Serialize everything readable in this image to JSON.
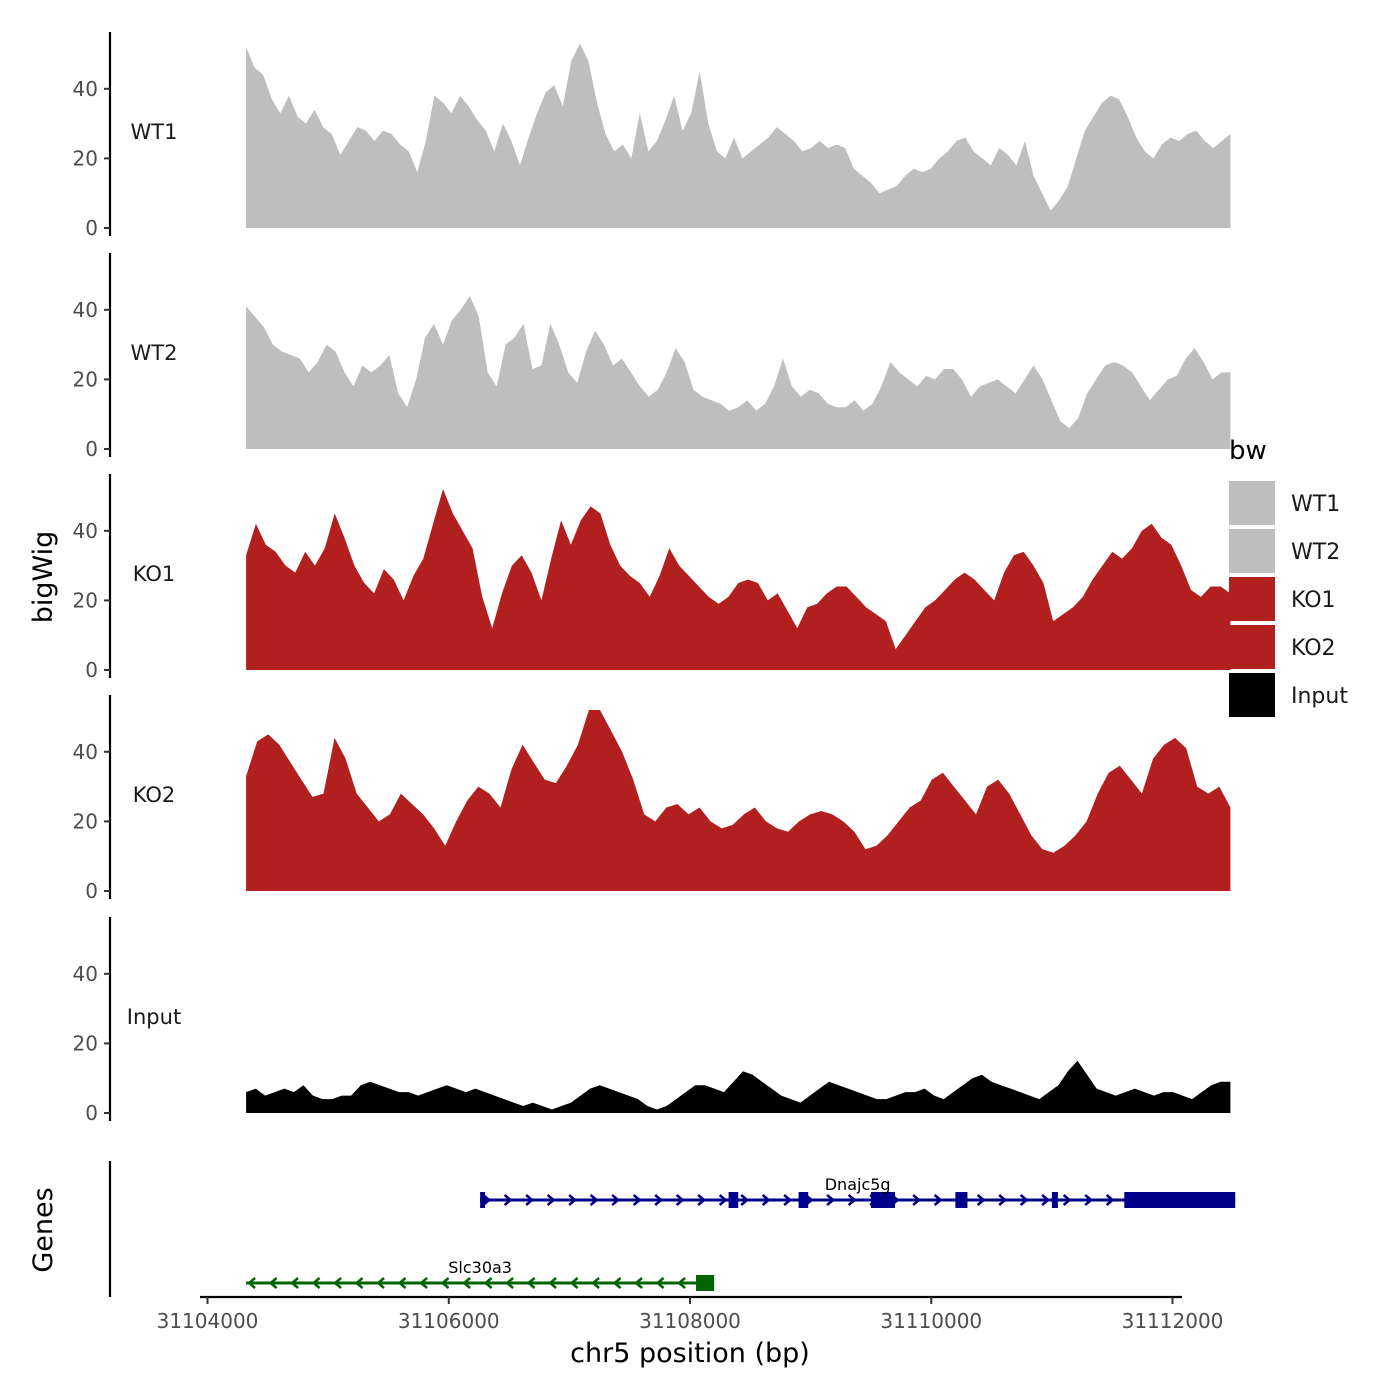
{
  "chart_data": {
    "type": "area",
    "title": "",
    "xlabel": "chr5 position (bp)",
    "ylabel": "bigWig",
    "gene_track_label": "Genes",
    "xlim": [
      31104000,
      31112000
    ],
    "x_ticks": [
      31104000,
      31106000,
      31108000,
      31110000,
      31112000
    ],
    "x_tick_labels": [
      "31104000",
      "31106000",
      "31108000",
      "31110000",
      "31112000"
    ],
    "ylim": [
      0,
      55
    ],
    "y_ticks": [
      0,
      20,
      40
    ],
    "y_tick_labels": [
      "0",
      "20",
      "40"
    ],
    "x_range": [
      31104320,
      31112480
    ],
    "legend": {
      "title": "bw",
      "position": "right",
      "entries": [
        {
          "label": "WT1",
          "color": "#bebebe"
        },
        {
          "label": "WT2",
          "color": "#bebebe"
        },
        {
          "label": "KO1",
          "color": "#b21f1f"
        },
        {
          "label": "KO2",
          "color": "#b21f1f"
        },
        {
          "label": "Input",
          "color": "#000000"
        }
      ]
    },
    "series": [
      {
        "name": "WT1",
        "color": "#bebebe",
        "values": [
          52,
          46,
          44,
          37,
          33,
          38,
          32,
          30,
          34,
          29,
          27,
          21,
          25,
          29,
          28,
          25,
          28,
          27,
          24,
          22,
          16,
          25,
          38,
          36,
          33,
          38,
          35,
          31,
          28,
          22,
          30,
          25,
          18,
          26,
          33,
          39,
          41,
          35,
          48,
          53,
          48,
          36,
          27,
          22,
          24,
          20,
          33,
          22,
          25,
          31,
          38,
          28,
          33,
          45,
          30,
          22,
          20,
          26,
          20,
          22,
          24,
          26,
          29,
          27,
          25,
          22,
          23,
          25,
          23,
          24,
          23,
          17,
          15,
          13,
          10,
          11,
          12,
          15,
          17,
          16,
          17,
          20,
          22,
          25,
          26,
          22,
          20,
          18,
          23,
          21,
          18,
          25,
          15,
          10,
          5,
          8,
          12,
          20,
          28,
          32,
          36,
          38,
          37,
          32,
          26,
          22,
          20,
          24,
          26,
          25,
          27,
          28,
          25,
          23,
          25,
          27
        ]
      },
      {
        "name": "WT2",
        "color": "#bebebe",
        "values": [
          41,
          38,
          35,
          30,
          28,
          27,
          26,
          22,
          25,
          30,
          28,
          22,
          18,
          24,
          22,
          24,
          27,
          16,
          12,
          20,
          32,
          36,
          30,
          37,
          40,
          44,
          38,
          22,
          18,
          30,
          32,
          36,
          23,
          24,
          36,
          30,
          22,
          19,
          28,
          34,
          30,
          24,
          26,
          22,
          18,
          15,
          17,
          22,
          29,
          25,
          17,
          15,
          14,
          13,
          11,
          12,
          14,
          11,
          13,
          18,
          26,
          18,
          15,
          17,
          16,
          13,
          12,
          12,
          14,
          11,
          13,
          18,
          25,
          22,
          20,
          18,
          21,
          20,
          23,
          23,
          20,
          15,
          18,
          19,
          20,
          18,
          16,
          20,
          24,
          20,
          14,
          8,
          6,
          9,
          16,
          20,
          24,
          25,
          24,
          22,
          18,
          14,
          17,
          20,
          21,
          26,
          29,
          25,
          20,
          22,
          22
        ]
      },
      {
        "name": "KO1",
        "color": "#b21f1f",
        "values": [
          33,
          42,
          36,
          34,
          30,
          28,
          34,
          30,
          35,
          45,
          38,
          30,
          25,
          22,
          29,
          26,
          20,
          27,
          32,
          42,
          52,
          45,
          40,
          35,
          21,
          12,
          22,
          30,
          33,
          28,
          20,
          32,
          43,
          36,
          43,
          47,
          45,
          36,
          30,
          27,
          25,
          21,
          27,
          35,
          30,
          27,
          24,
          21,
          19,
          21,
          25,
          26,
          25,
          20,
          22,
          17,
          12,
          18,
          19,
          22,
          24,
          24,
          21,
          18,
          16,
          14,
          6,
          10,
          14,
          18,
          20,
          23,
          26,
          28,
          26,
          23,
          20,
          28,
          33,
          34,
          30,
          25,
          14,
          16,
          18,
          21,
          26,
          30,
          34,
          32,
          35,
          40,
          42,
          38,
          36,
          30,
          23,
          21,
          24,
          24,
          22
        ]
      },
      {
        "name": "KO2",
        "color": "#b21f1f",
        "values": [
          33,
          43,
          45,
          42,
          37,
          32,
          27,
          28,
          44,
          38,
          28,
          24,
          20,
          22,
          28,
          25,
          22,
          18,
          13,
          20,
          26,
          30,
          28,
          24,
          35,
          42,
          37,
          32,
          31,
          36,
          42,
          52,
          52,
          46,
          40,
          32,
          22,
          20,
          24,
          25,
          22,
          24,
          20,
          18,
          19,
          22,
          24,
          20,
          18,
          17,
          20,
          22,
          23,
          22,
          20,
          17,
          12,
          13,
          16,
          20,
          24,
          26,
          32,
          34,
          30,
          26,
          22,
          30,
          32,
          28,
          22,
          16,
          12,
          11,
          13,
          16,
          20,
          28,
          34,
          36,
          32,
          28,
          38,
          42,
          44,
          41,
          30,
          28,
          30,
          24
        ]
      },
      {
        "name": "Input",
        "color": "#000000",
        "values": [
          6,
          7,
          5,
          6,
          7,
          6,
          8,
          5,
          4,
          4,
          5,
          5,
          8,
          9,
          8,
          7,
          6,
          6,
          5,
          6,
          7,
          8,
          7,
          6,
          7,
          6,
          5,
          4,
          3,
          2,
          3,
          2,
          1,
          2,
          3,
          5,
          7,
          8,
          7,
          6,
          5,
          4,
          2,
          1,
          2,
          4,
          6,
          8,
          8,
          7,
          6,
          9,
          12,
          11,
          9,
          7,
          5,
          4,
          3,
          5,
          7,
          9,
          8,
          7,
          6,
          5,
          4,
          4,
          5,
          6,
          6,
          7,
          5,
          4,
          6,
          8,
          10,
          11,
          9,
          8,
          7,
          6,
          5,
          4,
          6,
          8,
          12,
          15,
          11,
          7,
          6,
          5,
          6,
          7,
          6,
          5,
          6,
          6,
          5,
          4,
          6,
          8,
          9,
          9
        ]
      }
    ],
    "genes": [
      {
        "name": "Slc30a3",
        "strand": "-",
        "color": "#006400",
        "start": 31104320,
        "end": 31108200,
        "exons": [
          [
            31108050,
            31108200
          ]
        ]
      },
      {
        "name": "Dnajc5g",
        "strand": "+",
        "color": "#00008b",
        "start": 31106260,
        "end": 31112520,
        "exons": [
          [
            31106260,
            31106300
          ],
          [
            31108320,
            31108400
          ],
          [
            31108900,
            31108980
          ],
          [
            31109500,
            31109700
          ],
          [
            31110200,
            31110300
          ],
          [
            31111000,
            31111050
          ],
          [
            31111600,
            31112520
          ]
        ]
      }
    ]
  }
}
